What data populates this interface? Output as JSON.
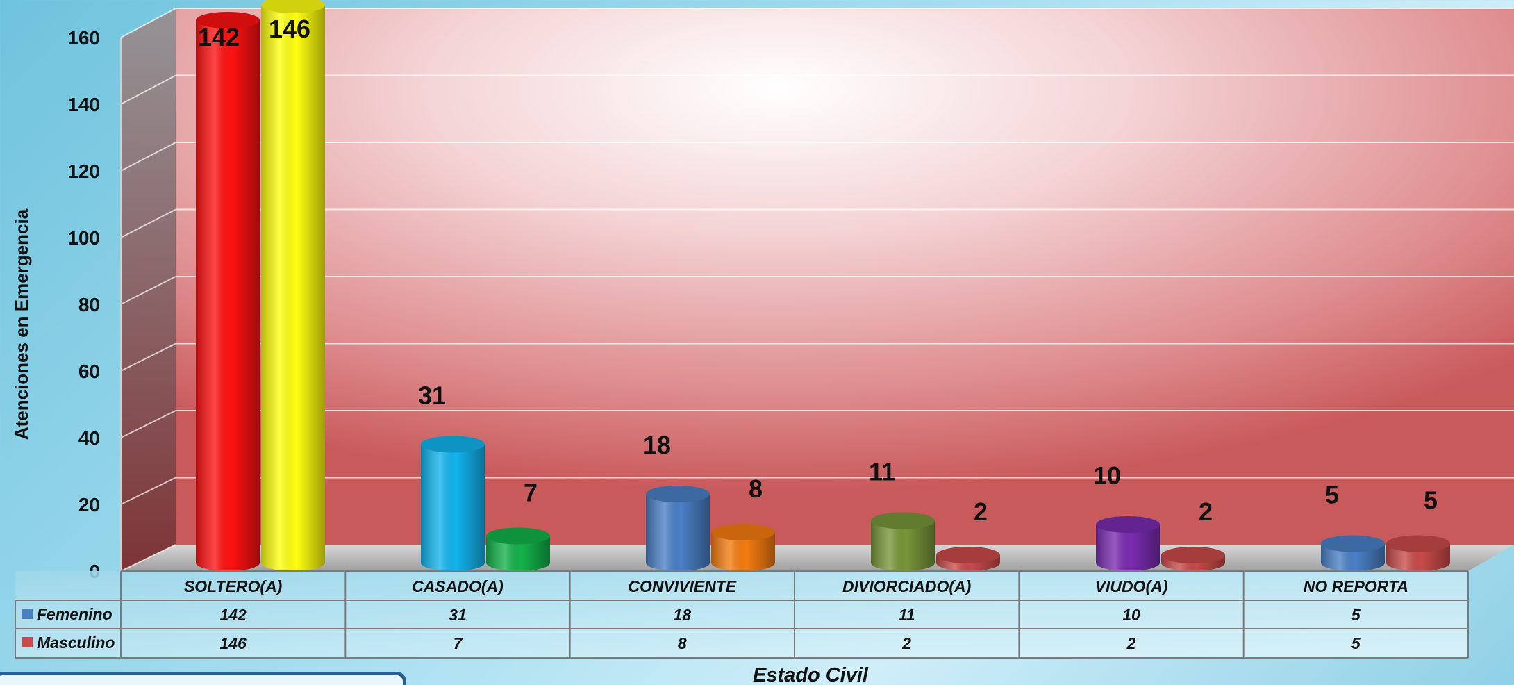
{
  "chart_data": {
    "type": "bar",
    "title": "",
    "xlabel": "Estado Civil",
    "ylabel": "Atenciones en Emergencia",
    "ylim": [
      0,
      160
    ],
    "yticks": [
      0,
      20,
      40,
      60,
      80,
      100,
      120,
      140,
      160
    ],
    "categories": [
      "SOLTERO(A)",
      "CASADO(A)",
      "CONVIVIENTE",
      "DIVIORCIADO(A)",
      "VIUDO(A)",
      "NO REPORTA"
    ],
    "series": [
      {
        "name": "Femenino",
        "values": [
          142,
          31,
          18,
          11,
          10,
          5
        ],
        "legend_color": "#4a7fc1",
        "bar_colors": [
          "#ff1212",
          "#12b4ee",
          "#4a80c6",
          "#78963a",
          "#7a2cb0",
          "#4a80c6"
        ]
      },
      {
        "name": "Masculino",
        "values": [
          146,
          7,
          8,
          2,
          2,
          5
        ],
        "legend_color": "#c94b49",
        "bar_colors": [
          "#ffff10",
          "#13b24a",
          "#f47c10",
          "#c94b49",
          "#c94b49",
          "#c94b49"
        ]
      }
    ],
    "grid": true,
    "data_table": true
  }
}
